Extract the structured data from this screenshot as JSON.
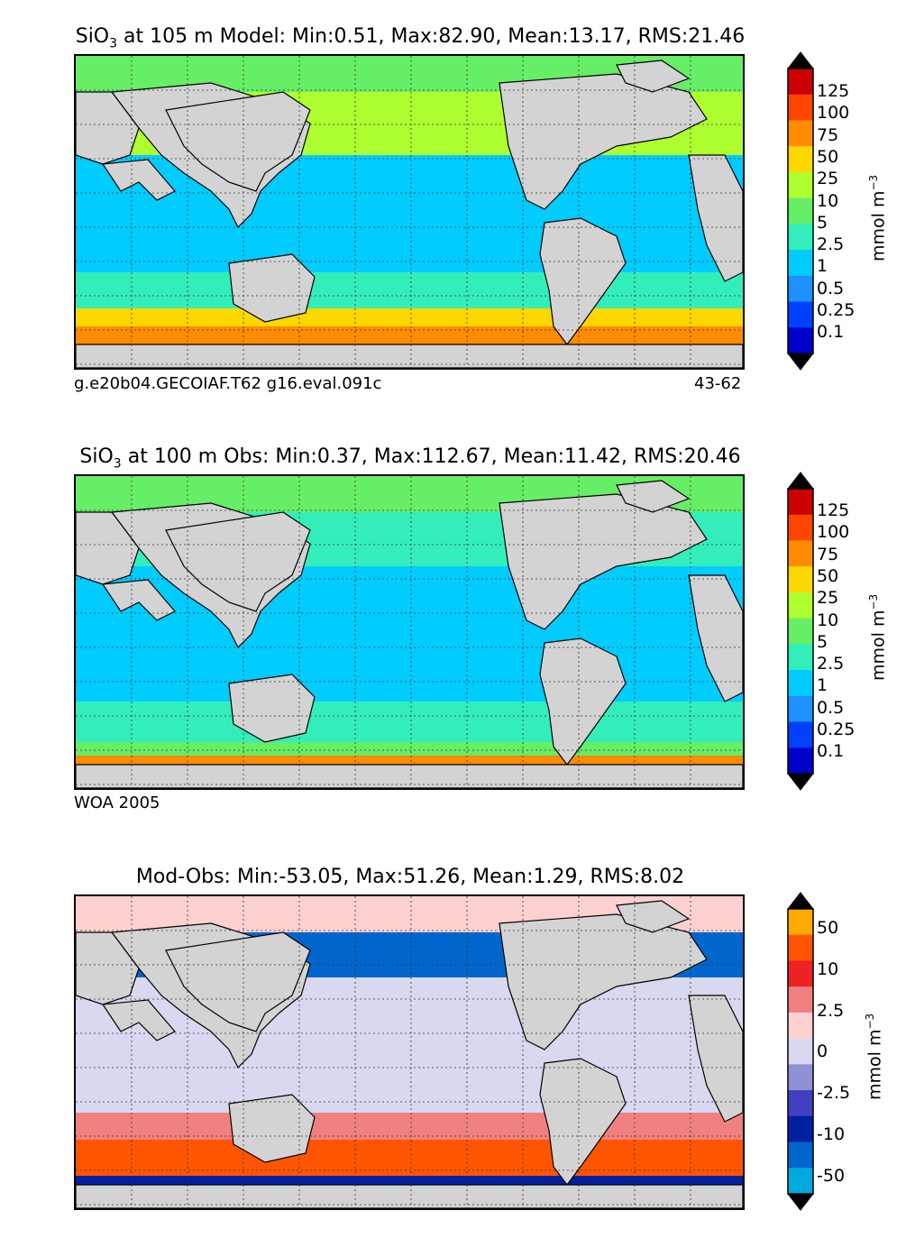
{
  "panels": [
    {
      "title_prefix": "SiO",
      "title_sub": "3",
      "title_rest": " at 105 m Model: Min:0.51, Max:82.90, Mean:13.17, RMS:21.46",
      "caption_left": "g.e20b04.GECOIAF.T62 g16.eval.091c",
      "caption_right": "43-62",
      "unit": "mmol m",
      "unit_exp": "−3",
      "ticks": [
        "125",
        "100",
        "75",
        "50",
        "25",
        "10",
        "5",
        "2.5",
        "1",
        "0.5",
        "0.25",
        "0.1"
      ],
      "colors": [
        "#7f0000",
        "#cc0000",
        "#ff4500",
        "#ff8c00",
        "#ffd700",
        "#adff2f",
        "#66ee66",
        "#33eebb",
        "#00ccff",
        "#1e90ff",
        "#0040ff",
        "#0000cc",
        "#00007f"
      ]
    },
    {
      "title_prefix": "SiO",
      "title_sub": "3",
      "title_rest": " at 100 m Obs: Min:0.37, Max:112.67, Mean:11.42, RMS:20.46",
      "caption_left": "WOA 2005",
      "caption_right": "",
      "unit": "mmol m",
      "unit_exp": "−3",
      "ticks": [
        "125",
        "100",
        "75",
        "50",
        "25",
        "10",
        "5",
        "2.5",
        "1",
        "0.5",
        "0.25",
        "0.1"
      ],
      "colors": [
        "#7f0000",
        "#cc0000",
        "#ff4500",
        "#ff8c00",
        "#ffd700",
        "#adff2f",
        "#66ee66",
        "#33eebb",
        "#00ccff",
        "#1e90ff",
        "#0040ff",
        "#0000cc",
        "#00007f"
      ]
    },
    {
      "title_prefix": "Mod-Obs: Min:-53.05, Max:51.26, Mean:1.29, RMS:8.02",
      "title_sub": "",
      "title_rest": "",
      "caption_left": "",
      "caption_right": "",
      "unit": "mmol m",
      "unit_exp": "−3",
      "ticks": [
        "50",
        "10",
        "2.5",
        "0",
        "-2.5",
        "-10",
        "-50"
      ],
      "colors": [
        "#ffff33",
        "#ffaa00",
        "#ff5500",
        "#ee2222",
        "#f08080",
        "#ffd0d0",
        "#d8d8f0",
        "#9090d8",
        "#4040c0",
        "#0020a0",
        "#0066cc",
        "#00aadd",
        "#00ffff"
      ]
    }
  ],
  "chart_data": [
    {
      "type": "heatmap",
      "title": "SiO3 at 105 m Model: Min:0.51, Max:82.90, Mean:13.17, RMS:21.46",
      "colorbar_ticks": [
        125,
        100,
        75,
        50,
        25,
        10,
        5,
        2.5,
        1,
        0.5,
        0.25,
        0.1
      ],
      "unit": "mmol m-3",
      "stats": {
        "min": 0.51,
        "max": 82.9,
        "mean": 13.17,
        "rms": 21.46
      },
      "grid": true
    },
    {
      "type": "heatmap",
      "title": "SiO3 at 100 m Obs: Min:0.37, Max:112.67, Mean:11.42, RMS:20.46",
      "colorbar_ticks": [
        125,
        100,
        75,
        50,
        25,
        10,
        5,
        2.5,
        1,
        0.5,
        0.25,
        0.1
      ],
      "unit": "mmol m-3",
      "stats": {
        "min": 0.37,
        "max": 112.67,
        "mean": 11.42,
        "rms": 20.46
      },
      "grid": true
    },
    {
      "type": "heatmap",
      "title": "Mod-Obs: Min:-53.05, Max:51.26, Mean:1.29, RMS:8.02",
      "colorbar_ticks": [
        50,
        10,
        2.5,
        0,
        -2.5,
        -10,
        -50
      ],
      "unit": "mmol m-3",
      "stats": {
        "min": -53.05,
        "max": 51.26,
        "mean": 1.29,
        "rms": 8.02
      },
      "grid": true
    }
  ]
}
